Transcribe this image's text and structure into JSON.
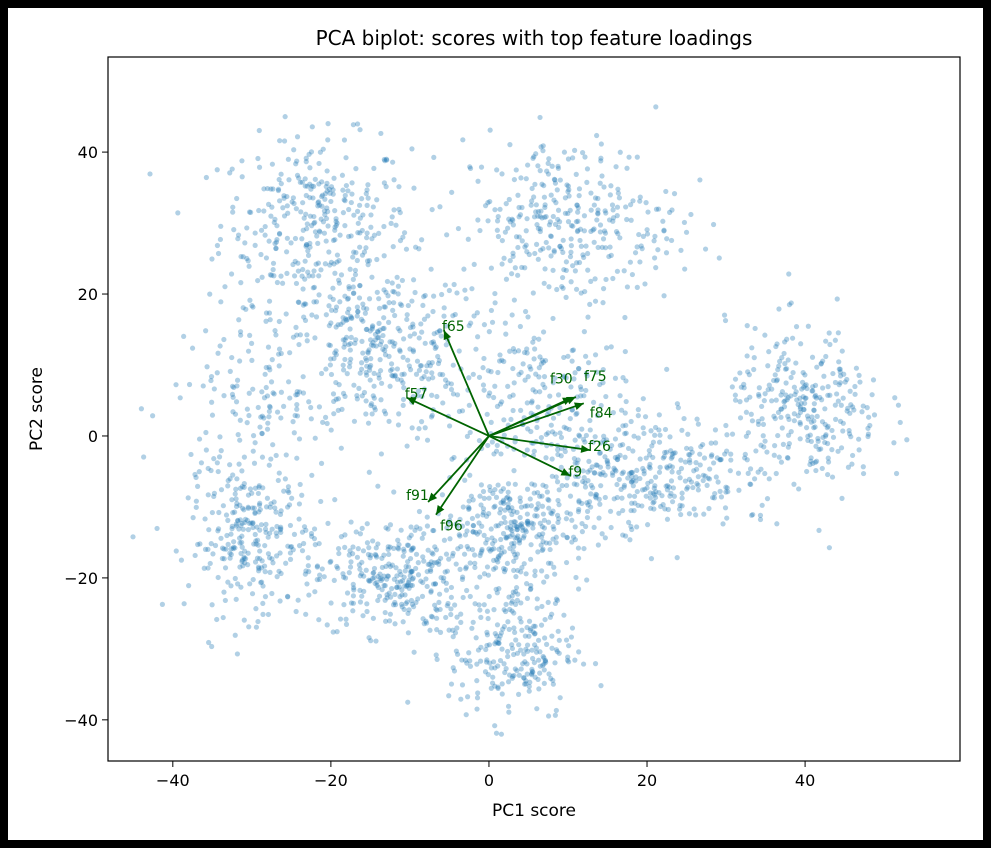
{
  "chart_data": {
    "type": "scatter",
    "title": "PCA biplot: scores with top feature loadings",
    "xlabel": "PC1 score",
    "ylabel": "PC2 score",
    "xlim": [
      -48.2,
      59.6
    ],
    "ylim": [
      -45.8,
      53.4
    ],
    "xticks": [
      -40,
      -20,
      0,
      20,
      40
    ],
    "yticks": [
      -40,
      -20,
      0,
      20,
      40
    ],
    "xtick_labels": [
      "−40",
      "−20",
      "0",
      "20",
      "40"
    ],
    "ytick_labels": [
      "−40",
      "−20",
      "0",
      "20",
      "40"
    ],
    "grid": false,
    "point_color": "#1f77b4",
    "arrow_color": "#006400",
    "score_clusters": [
      {
        "center": [
          -22,
          30
        ],
        "sd": [
          6,
          6
        ],
        "n": 330
      },
      {
        "center": [
          -14,
          12
        ],
        "sd": [
          6,
          6
        ],
        "n": 330
      },
      {
        "center": [
          -12,
          -20
        ],
        "sd": [
          5,
          4
        ],
        "n": 300
      },
      {
        "center": [
          -30,
          -15
        ],
        "sd": [
          4,
          5
        ],
        "n": 250
      },
      {
        "center": [
          3,
          -13
        ],
        "sd": [
          5,
          4
        ],
        "n": 300
      },
      {
        "center": [
          3,
          -30
        ],
        "sd": [
          4,
          5
        ],
        "n": 240
      },
      {
        "center": [
          10,
          30
        ],
        "sd": [
          7,
          6
        ],
        "n": 340
      },
      {
        "center": [
          5,
          5
        ],
        "sd": [
          7,
          6
        ],
        "n": 240
      },
      {
        "center": [
          20,
          -5
        ],
        "sd": [
          6,
          4
        ],
        "n": 300
      },
      {
        "center": [
          40,
          3
        ],
        "sd": [
          5,
          6
        ],
        "n": 300
      },
      {
        "center": [
          -30,
          5
        ],
        "sd": [
          5,
          7
        ],
        "n": 150
      }
    ],
    "loadings": [
      {
        "name": "f65",
        "x": -5.7,
        "y": 14.9
      },
      {
        "name": "f57",
        "x": -10.4,
        "y": 5.4
      },
      {
        "name": "f30",
        "x": 10.5,
        "y": 5.4
      },
      {
        "name": "f75",
        "x": 11.0,
        "y": 5.5
      },
      {
        "name": "f84",
        "x": 12.0,
        "y": 4.6
      },
      {
        "name": "f26",
        "x": 12.8,
        "y": -2.0
      },
      {
        "name": "f9",
        "x": 10.3,
        "y": -5.6
      },
      {
        "name": "f91",
        "x": -7.7,
        "y": -9.3
      },
      {
        "name": "f96",
        "x": -6.7,
        "y": -11.1
      }
    ]
  }
}
